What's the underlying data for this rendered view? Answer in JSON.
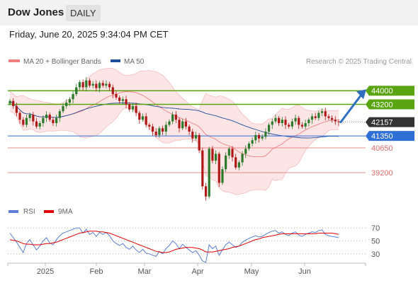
{
  "header": {
    "title": "Dow Jones",
    "timeframe": "DAILY"
  },
  "datetime": "Friday, June 20, 2025 9:34:04 PM CET",
  "source": "Research © 2025 Trading Central",
  "colors": {
    "bollinger": "#f08080",
    "bollinger_fill": "#fde0e0",
    "ma50": "#1f4e9c",
    "resistance": "#5aa412",
    "support": "#2f6fd6",
    "pivot": "#333333",
    "secondary_level": "#e36a6a",
    "rsi": "#5b7fd6",
    "rsi_ma": "#e00000",
    "candle_up": "#2a7a2a",
    "candle_down": "#b01818",
    "arrow": "#2f6fbd"
  },
  "chart_data": [
    {
      "type": "candlestick",
      "legend": [
        "MA 20 + Bollinger Bands",
        "MA 50"
      ],
      "legend_position": "top-left",
      "ylim": [
        37500,
        45500
      ],
      "x_tick_labels": [
        "2025",
        "Feb",
        "Mar",
        "Apr",
        "May",
        "Jun"
      ],
      "levels": [
        {
          "label": "44000",
          "value": 44000,
          "kind": "resistance"
        },
        {
          "label": "43200",
          "value": 43200,
          "kind": "resistance"
        },
        {
          "label": "42157",
          "value": 42157,
          "kind": "pivot"
        },
        {
          "label": "41350",
          "value": 41350,
          "kind": "support"
        },
        {
          "label": "40650",
          "value": 40650,
          "kind": "secondary"
        },
        {
          "label": "39200",
          "value": 39200,
          "kind": "secondary"
        }
      ],
      "closes": [
        43400,
        43100,
        42700,
        42300,
        42000,
        42400,
        42600,
        42200,
        41900,
        42100,
        42400,
        42600,
        42300,
        42100,
        42400,
        42800,
        43100,
        43300,
        43500,
        43800,
        44200,
        44500,
        44200,
        44600,
        44300,
        44400,
        44150,
        44450,
        44300,
        44400,
        44200,
        43800,
        43600,
        43400,
        43500,
        43200,
        42900,
        43100,
        42700,
        42300,
        42500,
        42000,
        41900,
        41600,
        41400,
        41800,
        41600,
        42000,
        42200,
        42600,
        42300,
        41800,
        42200,
        41900,
        41600,
        41200,
        41400,
        40500,
        38400,
        37800,
        40600,
        39900,
        40300,
        38600,
        39400,
        40200,
        40600,
        40100,
        39500,
        39800,
        40300,
        40600,
        40900,
        41100,
        41400,
        41200,
        41300,
        41600,
        42000,
        42200,
        42400,
        42100,
        42300,
        42000,
        41900,
        42200,
        42400,
        42000,
        41900,
        42100,
        42300,
        42500,
        42400,
        42700,
        42800,
        42500,
        42400,
        42300,
        42200,
        42157
      ]
    },
    {
      "type": "line",
      "legend": [
        "RSI",
        "9MA"
      ],
      "legend_position": "top-left",
      "ylim": [
        20,
        80
      ],
      "y_tick_labels": [
        "70",
        "50",
        "30"
      ],
      "y_ticks": [
        70,
        50,
        30
      ],
      "series": [
        {
          "name": "RSI",
          "values": [
            62,
            55,
            48,
            40,
            32,
            46,
            52,
            44,
            36,
            42,
            50,
            55,
            47,
            44,
            52,
            58,
            62,
            64,
            66,
            68,
            70,
            70,
            62,
            68,
            60,
            63,
            57,
            63,
            60,
            63,
            58,
            50,
            46,
            43,
            46,
            40,
            37,
            42,
            36,
            32,
            37,
            31,
            30,
            28,
            26,
            34,
            30,
            38,
            43,
            50,
            46,
            38,
            45,
            40,
            36,
            32,
            35,
            28,
            19,
            17,
            44,
            38,
            42,
            28,
            36,
            44,
            48,
            44,
            40,
            42,
            48,
            51,
            54,
            56,
            58,
            56,
            57,
            60,
            63,
            65,
            66,
            62,
            64,
            60,
            58,
            62,
            64,
            59,
            57,
            60,
            62,
            64,
            63,
            66,
            67,
            60,
            58,
            57,
            56,
            55
          ]
        },
        {
          "name": "9MA",
          "values": [
            52,
            51,
            50,
            48,
            46,
            45,
            45,
            44,
            44,
            44,
            45,
            46,
            46,
            47,
            48,
            50,
            52,
            54,
            56,
            58,
            60,
            62,
            63,
            64,
            65,
            65,
            65,
            64,
            64,
            63,
            62,
            60,
            58,
            56,
            54,
            52,
            50,
            48,
            46,
            44,
            42,
            40,
            38,
            36,
            34,
            33,
            32,
            32,
            33,
            35,
            37,
            38,
            39,
            40,
            40,
            40,
            39,
            38,
            36,
            33,
            33,
            33,
            34,
            35,
            36,
            37,
            38,
            40,
            41,
            42,
            44,
            46,
            48,
            50,
            52,
            53,
            55,
            56,
            57,
            58,
            59,
            60,
            61,
            61,
            61,
            61,
            61,
            61,
            61,
            61,
            61,
            61,
            61,
            62,
            62,
            62,
            62,
            62,
            61,
            60
          ]
        }
      ]
    }
  ]
}
